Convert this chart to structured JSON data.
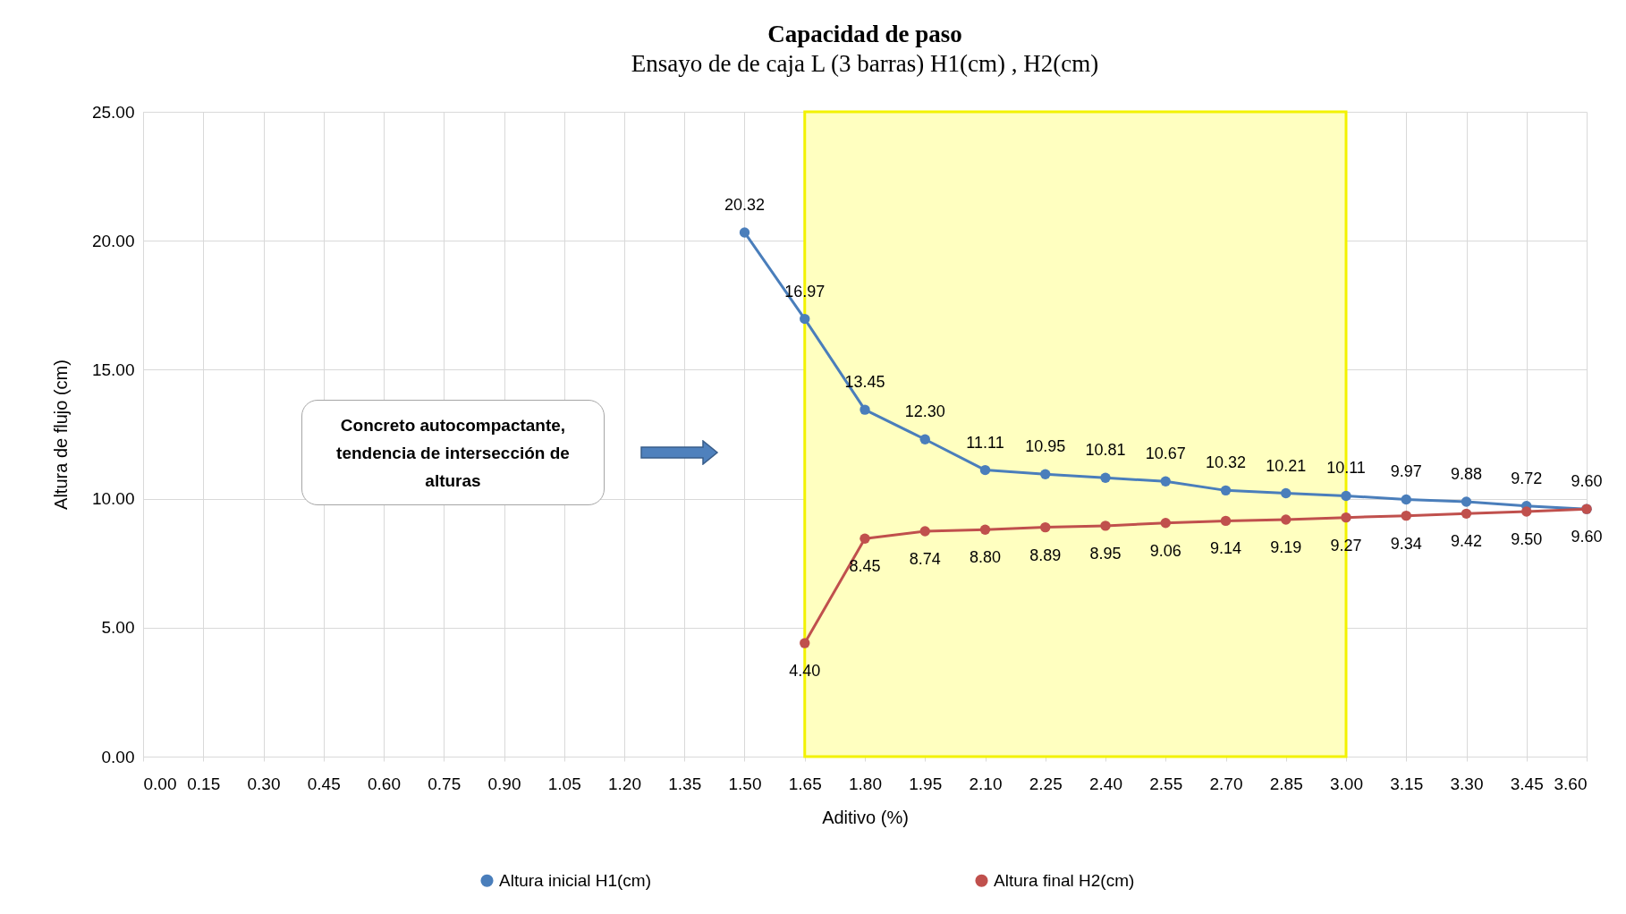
{
  "chart_data": {
    "type": "line",
    "title": "Capacidad de paso",
    "subtitle": "Ensayo de de caja L (3 barras) H1(cm) , H2(cm)",
    "xlabel": "Aditivo (%)",
    "ylabel": "Altura de flujo (cm)",
    "series": [
      {
        "name": "Altura inicial H1(cm)",
        "color": "#4a7ebb",
        "x": [
          1.5,
          1.65,
          1.8,
          1.95,
          2.1,
          2.25,
          2.4,
          2.55,
          2.7,
          2.85,
          3.0,
          3.15,
          3.3,
          3.45,
          3.6
        ],
        "values": [
          20.32,
          16.97,
          13.45,
          12.3,
          11.11,
          10.95,
          10.81,
          10.67,
          10.32,
          10.21,
          10.11,
          9.97,
          9.88,
          9.72,
          9.6
        ],
        "value_labels": [
          "20.32",
          "16.97",
          "13.45",
          "12.30",
          "11.11",
          "10.95",
          "10.81",
          "10.67",
          "10.32",
          "10.21",
          "10.11",
          "9.97",
          "9.88",
          "9.72",
          "9.60"
        ]
      },
      {
        "name": "Altura final H2(cm)",
        "color": "#c0504d",
        "x": [
          1.65,
          1.8,
          1.95,
          2.1,
          2.25,
          2.4,
          2.55,
          2.7,
          2.85,
          3.0,
          3.15,
          3.3,
          3.45,
          3.6
        ],
        "values": [
          4.4,
          8.45,
          8.74,
          8.8,
          8.89,
          8.95,
          9.06,
          9.14,
          9.19,
          9.27,
          9.34,
          9.42,
          9.5,
          9.6
        ],
        "value_labels": [
          "4.40",
          "8.45",
          "8.74",
          "8.80",
          "8.89",
          "8.95",
          "9.06",
          "9.14",
          "9.19",
          "9.27",
          "9.34",
          "9.42",
          "9.50",
          "9.60"
        ]
      }
    ],
    "xlim": [
      0,
      3.6
    ],
    "xticks": [
      {
        "value": 0,
        "label": "0.00"
      },
      {
        "value": 0.15,
        "label": "0.15"
      },
      {
        "value": 0.3,
        "label": "0.30"
      },
      {
        "value": 0.45,
        "label": "0.45"
      },
      {
        "value": 0.6,
        "label": "0.60"
      },
      {
        "value": 0.75,
        "label": "0.75"
      },
      {
        "value": 0.9,
        "label": "0.90"
      },
      {
        "value": 1.05,
        "label": "1.05"
      },
      {
        "value": 1.2,
        "label": "1.20"
      },
      {
        "value": 1.35,
        "label": "1.35"
      },
      {
        "value": 1.5,
        "label": "1.50"
      },
      {
        "value": 1.65,
        "label": "1.65"
      },
      {
        "value": 1.8,
        "label": "1.80"
      },
      {
        "value": 1.95,
        "label": "1.95"
      },
      {
        "value": 2.1,
        "label": "2.10"
      },
      {
        "value": 2.25,
        "label": "2.25"
      },
      {
        "value": 2.4,
        "label": "2.40"
      },
      {
        "value": 2.55,
        "label": "2.55"
      },
      {
        "value": 2.7,
        "label": "2.70"
      },
      {
        "value": 2.85,
        "label": "2.85"
      },
      {
        "value": 3.0,
        "label": "3.00"
      },
      {
        "value": 3.15,
        "label": "3.15"
      },
      {
        "value": 3.3,
        "label": "3.30"
      },
      {
        "value": 3.45,
        "label": "3.45"
      },
      {
        "value": 3.6,
        "label": "3.60"
      }
    ],
    "ylim": [
      0,
      25
    ],
    "yticks": [
      {
        "value": 0,
        "label": "0.00"
      },
      {
        "value": 5,
        "label": "5.00"
      },
      {
        "value": 10,
        "label": "10.00"
      },
      {
        "value": 15,
        "label": "15.00"
      },
      {
        "value": 20,
        "label": "20.00"
      },
      {
        "value": 25,
        "label": "25.00"
      }
    ],
    "bands": [
      {
        "axis": "x",
        "from": 1.65,
        "to": 3.0,
        "color": "#ffffc0"
      }
    ],
    "annotations": [
      "Concreto autocompactante, tendencia de intersección de alturas"
    ],
    "grid": true,
    "legend": "bottom",
    "marker": "circle",
    "line_style": "solid"
  }
}
